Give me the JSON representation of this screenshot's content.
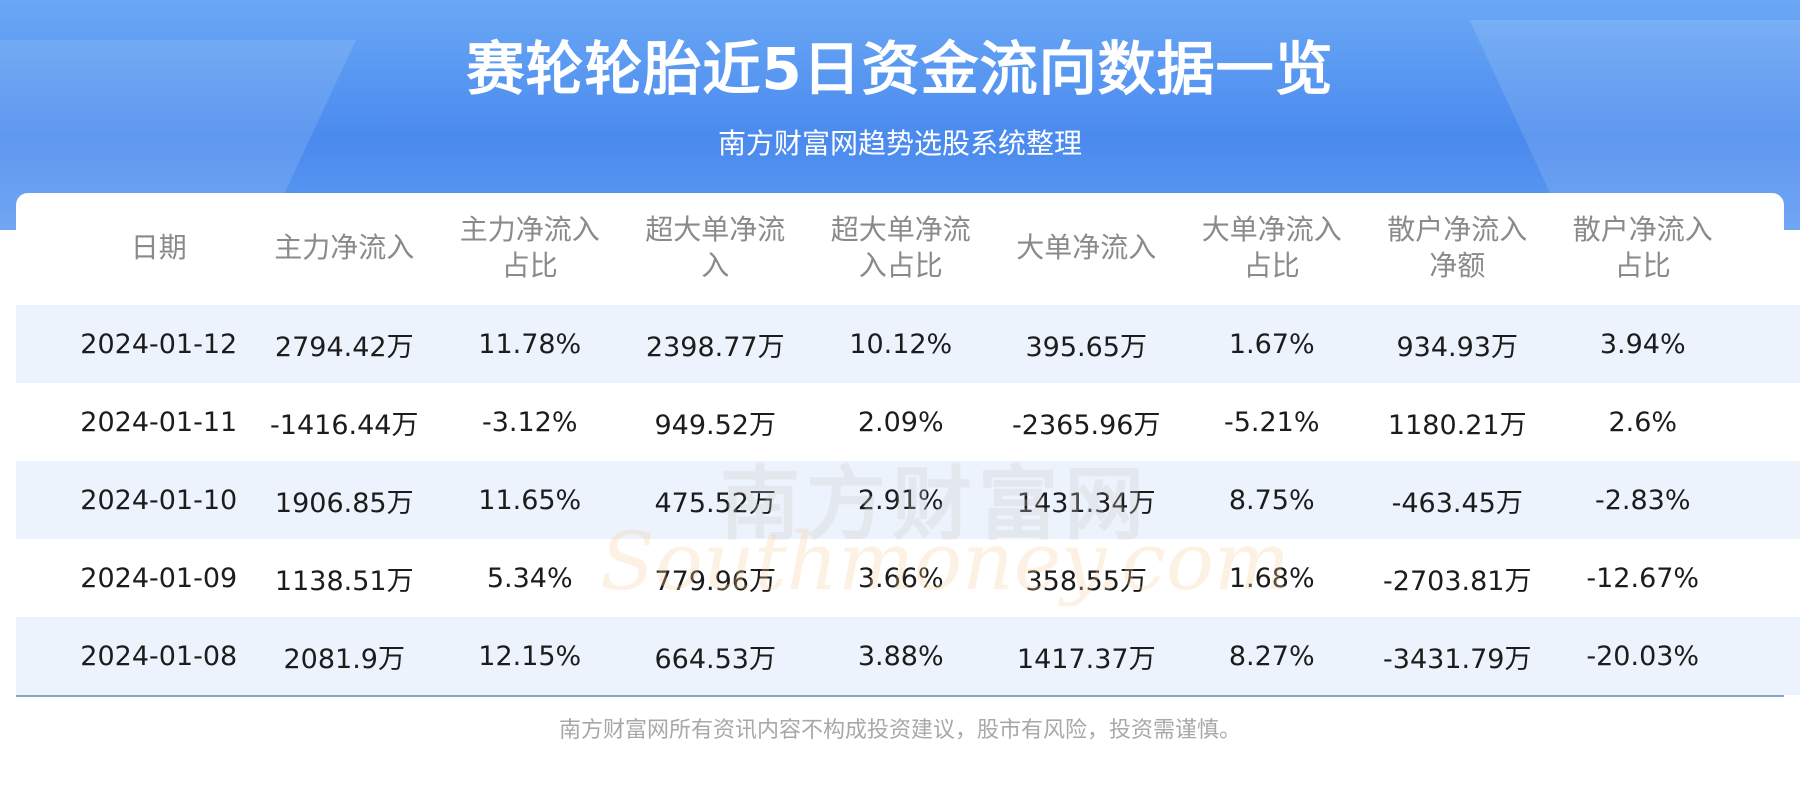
{
  "header": {
    "title": "赛轮轮胎近5日资金流向数据一览",
    "subtitle": "南方财富网趋势选股系统整理"
  },
  "table": {
    "columns": [
      "日期",
      "主力净流入",
      "主力净流入占比",
      "超大单净流入",
      "超大单净流入占比",
      "大单净流入",
      "大单净流入占比",
      "散户净流入净额",
      "散户净流入占比"
    ],
    "rows": [
      [
        "2024-01-12",
        "2794.42万",
        "11.78%",
        "2398.77万",
        "10.12%",
        "395.65万",
        "1.67%",
        "934.93万",
        "3.94%"
      ],
      [
        "2024-01-11",
        "-1416.44万",
        "-3.12%",
        "949.52万",
        "2.09%",
        "-2365.96万",
        "-5.21%",
        "1180.21万",
        "2.6%"
      ],
      [
        "2024-01-10",
        "1906.85万",
        "11.65%",
        "475.52万",
        "2.91%",
        "1431.34万",
        "8.75%",
        "-463.45万",
        "-2.83%"
      ],
      [
        "2024-01-09",
        "1138.51万",
        "5.34%",
        "779.96万",
        "3.66%",
        "358.55万",
        "1.68%",
        "-2703.81万",
        "-12.67%"
      ],
      [
        "2024-01-08",
        "2081.9万",
        "12.15%",
        "664.53万",
        "3.88%",
        "1417.37万",
        "8.27%",
        "-3431.79万",
        "-20.03%"
      ]
    ]
  },
  "watermark": {
    "cn": "南方财富网",
    "en": "Southmoney.com"
  },
  "footer": {
    "disclaimer": "南方财富网所有资讯内容不构成投资建议，股市有风险，投资需谨慎。"
  }
}
